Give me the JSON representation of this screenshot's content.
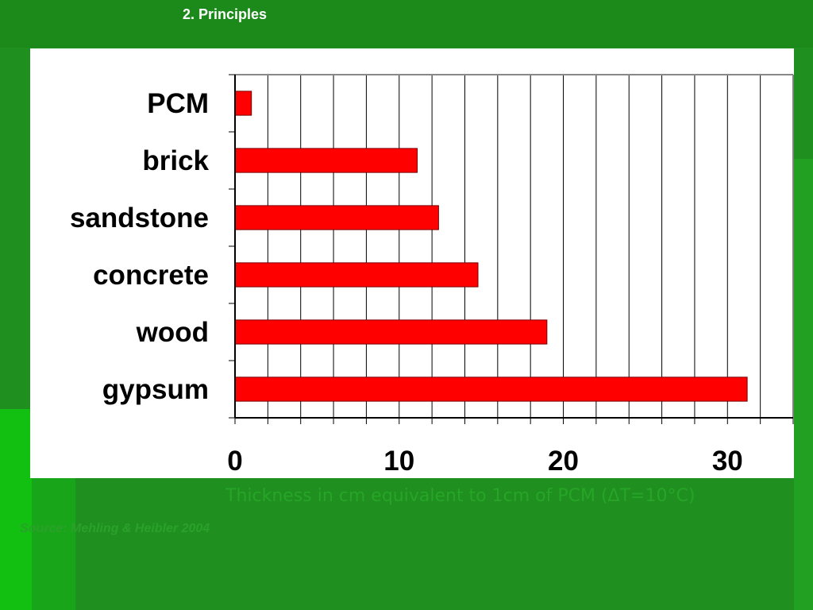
{
  "slide": {
    "title": "2. Principles",
    "source_note": "Source: Mehling & Heibler 2004"
  },
  "chart_data": {
    "type": "bar",
    "orientation": "horizontal",
    "categories": [
      "PCM",
      "brick",
      "sandstone",
      "concrete",
      "wood",
      "gypsum"
    ],
    "values": [
      1,
      11.1,
      12.4,
      14.8,
      19,
      31.2
    ],
    "xlabel": "Thickness in cm equivalent to 1cm of PCM (ΔT=10°C)",
    "ylabel": "",
    "xlim": [
      0,
      34
    ],
    "x_ticks": [
      0,
      10,
      20,
      30
    ],
    "grid": true,
    "bar_color": "#ff0000",
    "legend": "none"
  },
  "colors": {
    "background": "#1f8f1f",
    "panel": "#ffffff",
    "bar": "#ff0000",
    "caption": "#27a527"
  }
}
